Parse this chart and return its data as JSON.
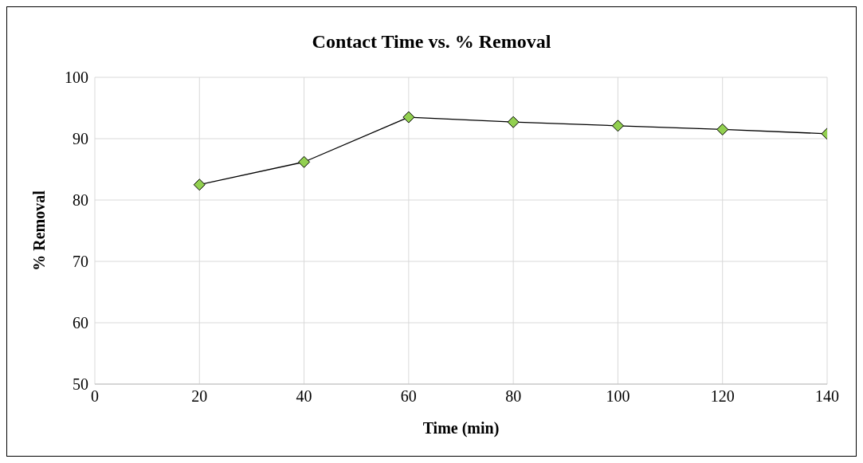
{
  "chart_data": {
    "type": "line",
    "title": "Contact Time vs. % Removal",
    "xlabel": "Time (min)",
    "ylabel": "% Removal",
    "x": [
      20,
      40,
      60,
      80,
      100,
      120,
      140
    ],
    "series": [
      {
        "color": "#92d050",
        "values": [
          82.5,
          86.2,
          93.5,
          92.7,
          92.1,
          91.5,
          90.8
        ]
      }
    ],
    "xlim": [
      0,
      140
    ],
    "xticks": [
      0,
      20,
      40,
      60,
      80,
      100,
      120,
      140
    ],
    "ylim": [
      50,
      100
    ],
    "yticks": [
      50,
      60,
      70,
      80,
      90,
      100
    ],
    "grid": true,
    "legend": false,
    "marker": "diamond",
    "line_style": "solid"
  }
}
